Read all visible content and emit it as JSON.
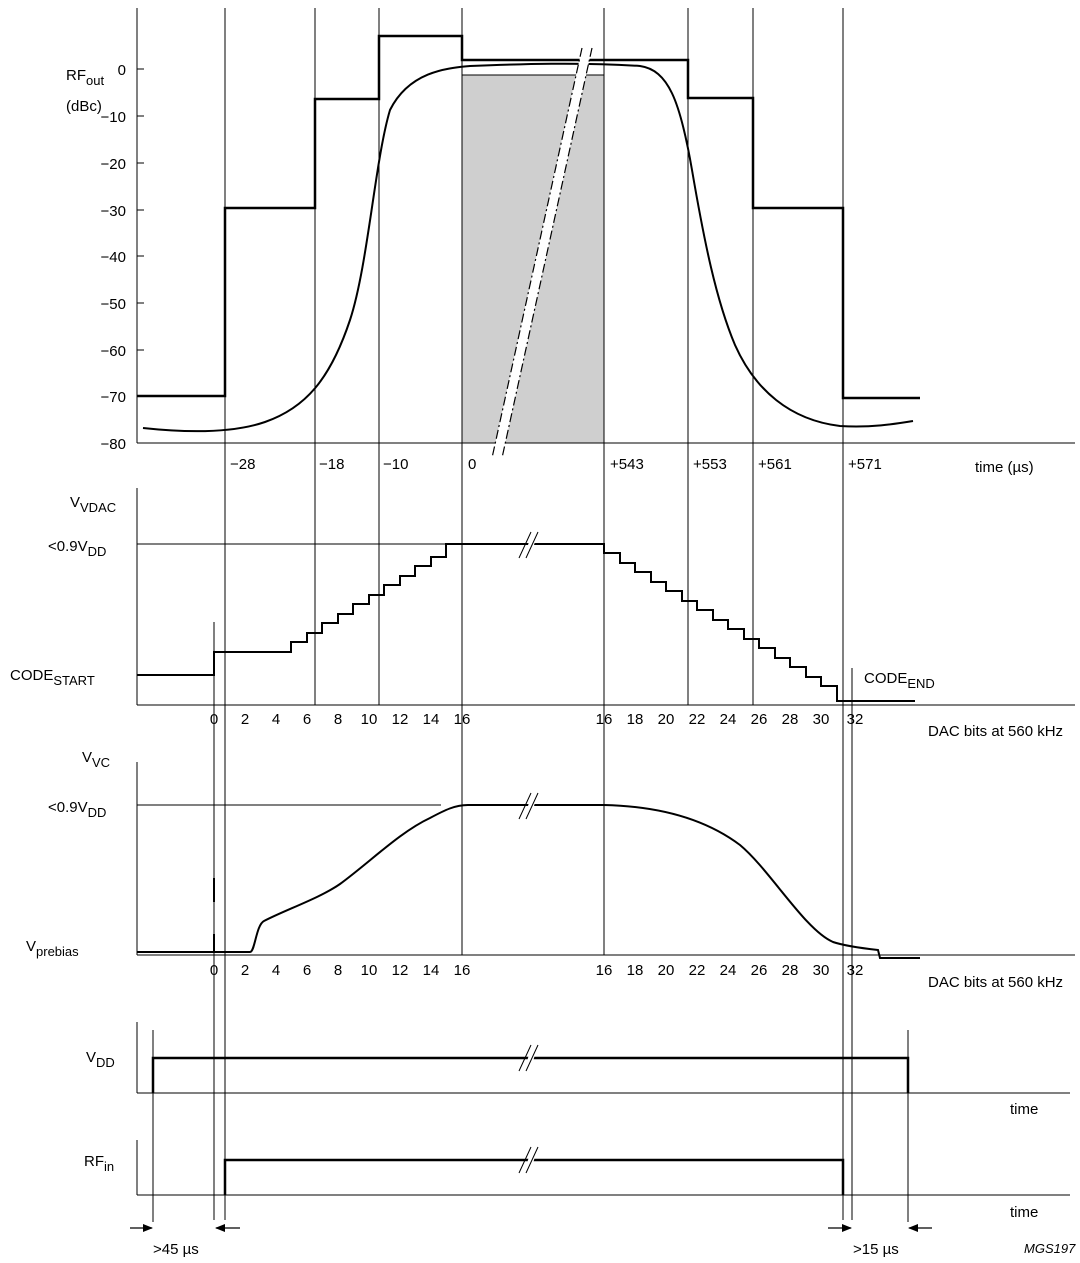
{
  "rf_out": {
    "ylabel_main": "RF",
    "ylabel_sub": "out",
    "ylabel_unit": "(dBc)",
    "y_ticks": [
      "0",
      "−10",
      "−20",
      "−30",
      "−40",
      "−50",
      "−60",
      "−70",
      "−80"
    ],
    "x_ticks": [
      "−28",
      "−18",
      "−10",
      "0",
      "+543",
      "+553",
      "+561",
      "+571"
    ],
    "xlabel": "time (µs)"
  },
  "vdac": {
    "ylabel_main": "V",
    "ylabel_sub": "VDAC",
    "level_main": "<0.9V",
    "level_sub": "DD",
    "start_main": "CODE",
    "start_sub": "START",
    "end_main": "CODE",
    "end_sub": "END",
    "x_ticks": [
      "0",
      "2",
      "4",
      "6",
      "8",
      "10",
      "12",
      "14",
      "16",
      "16",
      "18",
      "20",
      "22",
      "24",
      "26",
      "28",
      "30",
      "32"
    ],
    "xlabel": "DAC bits at 560 kHz"
  },
  "vvc": {
    "ylabel_main": "V",
    "ylabel_sub": "VC",
    "level_main": "<0.9V",
    "level_sub": "DD",
    "prebias_main": "V",
    "prebias_sub": "prebias",
    "x_ticks": [
      "0",
      "2",
      "4",
      "6",
      "8",
      "10",
      "12",
      "14",
      "16",
      "16",
      "18",
      "20",
      "22",
      "24",
      "26",
      "28",
      "30",
      "32"
    ],
    "xlabel": "DAC bits at 560 kHz"
  },
  "vdd": {
    "ylabel_main": "V",
    "ylabel_sub": "DD",
    "xlabel": "time"
  },
  "rfin": {
    "ylabel_main": "RF",
    "ylabel_sub": "in",
    "xlabel": "time"
  },
  "timing": {
    "left_gap": ">45 µs",
    "right_gap": ">15 µs"
  },
  "ref_code": "MGS197"
}
